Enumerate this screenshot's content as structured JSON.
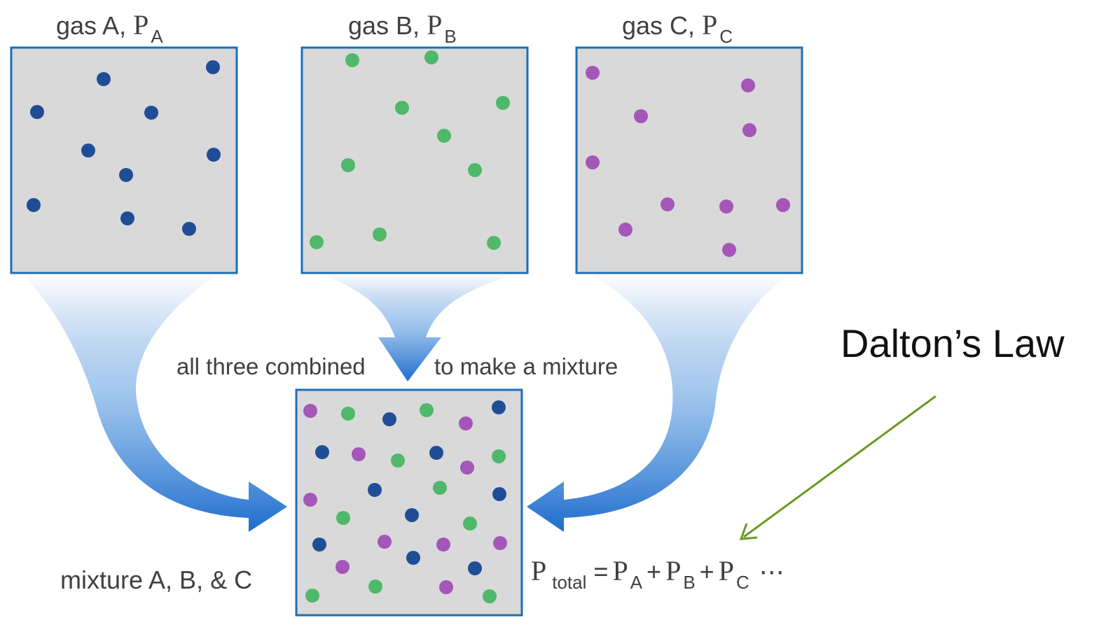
{
  "labels": {
    "gas_a": {
      "text": "gas A, ",
      "symbol": "P",
      "sub": "A"
    },
    "gas_b": {
      "text": "gas B, ",
      "symbol": "P",
      "sub": "B"
    },
    "gas_c": {
      "text": "gas C, ",
      "symbol": "P",
      "sub": "C"
    },
    "combined_left": "all three combined",
    "combined_right": "to make a mixture",
    "mixture": "mixture A, B, & C"
  },
  "equation": {
    "symbol": "P",
    "total_sub": "total",
    "equals": "=",
    "plus": "+",
    "sub_a": "A",
    "sub_b": "B",
    "sub_c": "C",
    "ellipsis": "⋯"
  },
  "annotation": {
    "title": "Dalton’s Law",
    "arrow_color": "#6b9a1e"
  },
  "colors": {
    "gas_a": "#1f4e96",
    "gas_b": "#4fb86a",
    "gas_c": "#a456b9",
    "box_fill": "#d9d9d9",
    "box_border": "#1e6eb3",
    "flow_arrow": "#1d6ccc"
  },
  "particle_counts": {
    "gas_a": 10,
    "gas_b": 10,
    "gas_c": 10,
    "mixture": 30
  }
}
